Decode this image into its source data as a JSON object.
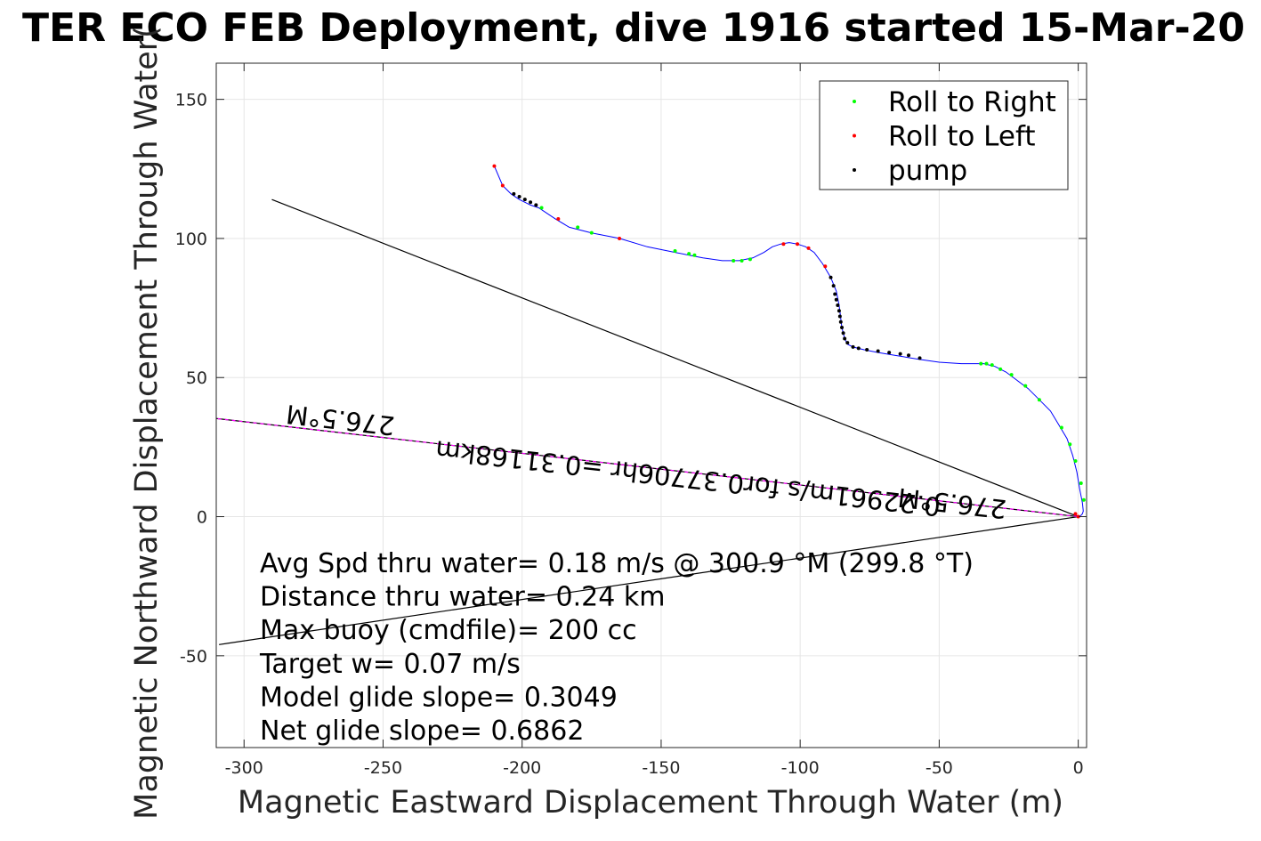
{
  "chart_data": {
    "type": "line",
    "title": "TER ECO FEB Deployment, dive 1916 started 15-Mar-20",
    "xlabel": "Magnetic Eastward Displacement Through Water (m)",
    "ylabel": "Magnetic Northward Displacement Through Water(",
    "xlim": [
      -310,
      3
    ],
    "ylim": [
      -83,
      163
    ],
    "xticks": [
      -300,
      -250,
      -200,
      -150,
      -100,
      -50,
      0
    ],
    "yticks": [
      -50,
      0,
      50,
      100,
      150
    ],
    "grid": true,
    "legend_position": "top-right",
    "legend": [
      {
        "label": "Roll to Right",
        "color": "#00ff00"
      },
      {
        "label": "Roll to Left",
        "color": "#ff0000"
      },
      {
        "label": "pump",
        "color": "#000000"
      }
    ],
    "track": {
      "color": "#0000ff",
      "x": [
        -210,
        -207,
        -204,
        -201,
        -197,
        -194,
        -188,
        -183,
        -175,
        -165,
        -155,
        -145,
        -140,
        -135,
        -128,
        -122,
        -117,
        -113,
        -110,
        -107,
        -104,
        -101,
        -98,
        -95,
        -92,
        -89,
        -87,
        -86,
        -85.5,
        -85,
        -84,
        -83,
        -81,
        -77,
        -72,
        -66,
        -60,
        -57,
        -50,
        -42,
        -38,
        -34,
        -30,
        -26,
        -22,
        -18,
        -14,
        -10,
        -7,
        -4,
        -2,
        -0.5,
        0.5,
        1.5,
        1.8,
        1.5,
        1,
        0.5,
        0
      ],
      "y": [
        126,
        119,
        116,
        114,
        112,
        111,
        107,
        104,
        102,
        100,
        97,
        95,
        94,
        93,
        92,
        92,
        93,
        95,
        97,
        98,
        98.5,
        98,
        97,
        95,
        91,
        86,
        81,
        76,
        72,
        68,
        64,
        62,
        61,
        60,
        59,
        58,
        57,
        56.5,
        55.5,
        55,
        55,
        55,
        54,
        52,
        49,
        46,
        42,
        38,
        33,
        28,
        22,
        16,
        10,
        5,
        2,
        1,
        0.5,
        0.2,
        0
      ]
    },
    "roll_right_points": [
      {
        "x": -193,
        "y": 111
      },
      {
        "x": -180,
        "y": 104
      },
      {
        "x": -175,
        "y": 102
      },
      {
        "x": -145,
        "y": 95.5
      },
      {
        "x": -140,
        "y": 94.5
      },
      {
        "x": -138,
        "y": 94
      },
      {
        "x": -124,
        "y": 92
      },
      {
        "x": -121,
        "y": 92
      },
      {
        "x": -118,
        "y": 92.5
      },
      {
        "x": -35,
        "y": 55
      },
      {
        "x": -33,
        "y": 55
      },
      {
        "x": -31,
        "y": 54.5
      },
      {
        "x": -28,
        "y": 53
      },
      {
        "x": -24,
        "y": 51
      },
      {
        "x": -19,
        "y": 47
      },
      {
        "x": -14,
        "y": 42
      },
      {
        "x": -6,
        "y": 32
      },
      {
        "x": -3,
        "y": 26
      },
      {
        "x": -1,
        "y": 20
      },
      {
        "x": 1,
        "y": 12
      },
      {
        "x": 2,
        "y": 6
      }
    ],
    "roll_left_points": [
      {
        "x": -210,
        "y": 126
      },
      {
        "x": -207,
        "y": 119
      },
      {
        "x": -187,
        "y": 107
      },
      {
        "x": -165,
        "y": 100
      },
      {
        "x": -106,
        "y": 98
      },
      {
        "x": -101,
        "y": 98
      },
      {
        "x": -97,
        "y": 96.5
      },
      {
        "x": -91,
        "y": 90
      },
      {
        "x": -1,
        "y": 1
      },
      {
        "x": 0,
        "y": 0
      }
    ],
    "pump_points": [
      {
        "x": -203,
        "y": 116
      },
      {
        "x": -201,
        "y": 115
      },
      {
        "x": -199,
        "y": 114
      },
      {
        "x": -197,
        "y": 113
      },
      {
        "x": -195,
        "y": 112
      },
      {
        "x": -89,
        "y": 86
      },
      {
        "x": -88,
        "y": 83
      },
      {
        "x": -87.5,
        "y": 80
      },
      {
        "x": -87,
        "y": 78
      },
      {
        "x": -86.5,
        "y": 76
      },
      {
        "x": -86,
        "y": 74
      },
      {
        "x": -85.7,
        "y": 72
      },
      {
        "x": -85.4,
        "y": 70
      },
      {
        "x": -85,
        "y": 68
      },
      {
        "x": -84.5,
        "y": 66
      },
      {
        "x": -84,
        "y": 64
      },
      {
        "x": -83,
        "y": 62.5
      },
      {
        "x": -81,
        "y": 61
      },
      {
        "x": -79,
        "y": 60.5
      },
      {
        "x": -76,
        "y": 60
      },
      {
        "x": -72,
        "y": 59.5
      },
      {
        "x": -68,
        "y": 59
      },
      {
        "x": -64,
        "y": 58.5
      },
      {
        "x": -61,
        "y": 58
      },
      {
        "x": -57,
        "y": 57
      }
    ],
    "reference_lines": [
      {
        "color": "#000000",
        "x": [
          -290,
          0
        ],
        "y": [
          114,
          0
        ]
      },
      {
        "color": "#000000",
        "x": [
          -309,
          0
        ],
        "y": [
          -46,
          0
        ]
      },
      {
        "color": "#000000",
        "x": [
          -312,
          0
        ],
        "y": [
          35.5,
          0
        ]
      },
      {
        "color": "#ff00ff",
        "x": [
          -312,
          0
        ],
        "y": [
          35.5,
          0
        ],
        "dashed": true
      }
    ],
    "line_annotations": [
      {
        "text": "276.5°M",
        "x": -265,
        "y": 38,
        "flipped": true
      },
      {
        "text": "0.22961m/s for0.37706hr =0.31168km",
        "x": -140,
        "y": 17,
        "flipped": true
      },
      {
        "text": "276.5°M",
        "x": -45,
        "y": 8,
        "flipped": true
      }
    ],
    "stats": [
      "Avg Spd thru water=  0.18 m/s @ 300.9 °M (299.8 °T)",
      "Distance thru water=  0.24 km",
      "Max buoy (cmdfile)= 200 cc",
      "Target w= 0.07 m/s",
      "Model glide slope= 0.3049",
      "Net glide slope= 0.6862"
    ]
  }
}
